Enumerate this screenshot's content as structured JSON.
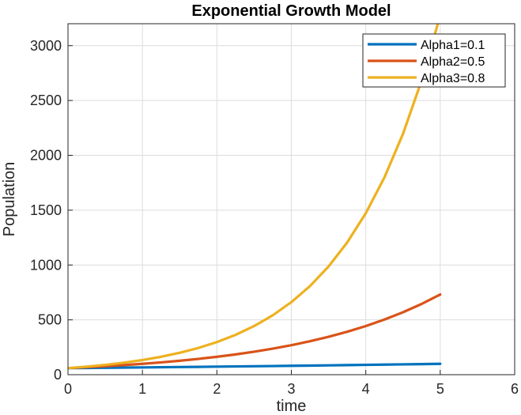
{
  "chart_data": {
    "type": "line",
    "title": "Exponential Growth Model",
    "xlabel": "time",
    "ylabel": "Population",
    "xlim": [
      0,
      6
    ],
    "ylim": [
      0,
      3200
    ],
    "x_ticks": [
      0,
      1,
      2,
      3,
      4,
      5,
      6
    ],
    "y_ticks": [
      0,
      500,
      1000,
      1500,
      2000,
      2500,
      3000
    ],
    "grid": true,
    "legend_position": "top-right",
    "x": [
      0,
      0.25,
      0.5,
      0.75,
      1,
      1.25,
      1.5,
      1.75,
      2,
      2.25,
      2.5,
      2.75,
      3,
      3.25,
      3.5,
      3.75,
      4,
      4.25,
      4.5,
      4.75,
      5
    ],
    "series": [
      {
        "name": "Alpha1=0.1",
        "color": "#0072BD",
        "values": [
          60,
          61.5,
          63.1,
          64.7,
          66.3,
          68.0,
          69.7,
          71.4,
          73.3,
          75.1,
          77.0,
          79.0,
          81.0,
          83.0,
          85.1,
          87.3,
          89.5,
          91.8,
          94.1,
          96.5,
          98.9
        ]
      },
      {
        "name": "Alpha2=0.5",
        "color": "#D95319",
        "values": [
          60,
          68.0,
          77.0,
          87.3,
          98.9,
          112.1,
          127.0,
          143.9,
          163.1,
          184.8,
          209.4,
          237.3,
          268.9,
          304.7,
          345.3,
          391.3,
          443.4,
          502.4,
          569.3,
          645.1,
          731.0
        ]
      },
      {
        "name": "Alpha3=0.8",
        "color": "#EDB120",
        "values": [
          60,
          73.3,
          89.5,
          109.3,
          133.5,
          163.1,
          199.2,
          243.3,
          297.2,
          363.0,
          443.4,
          541.5,
          661.4,
          807.8,
          986.7,
          1205.1,
          1472.0,
          1797.9,
          2196.0,
          2682.2,
          3276.0
        ]
      }
    ]
  }
}
